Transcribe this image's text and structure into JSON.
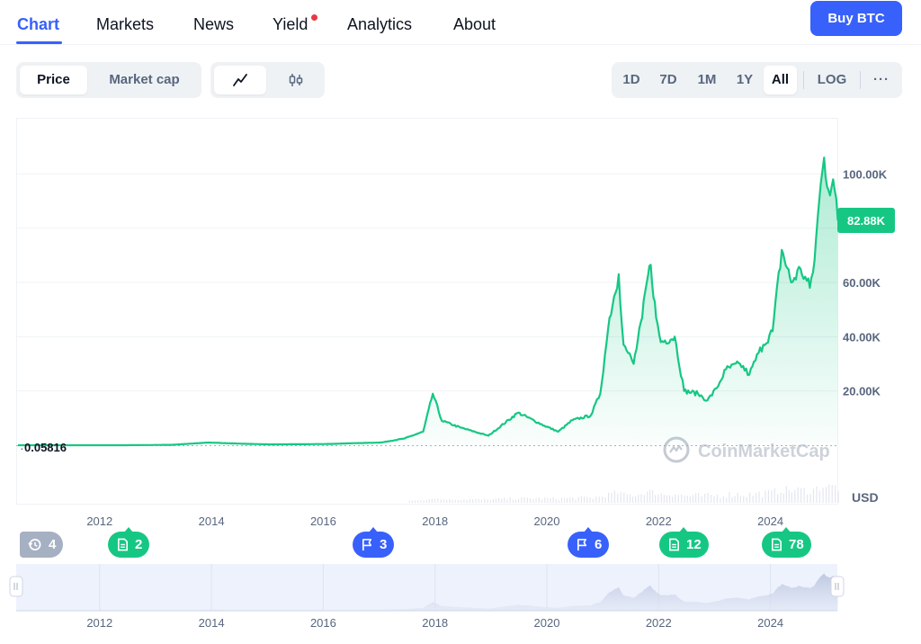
{
  "nav": {
    "tabs": [
      {
        "label": "Chart",
        "active": true
      },
      {
        "label": "Markets"
      },
      {
        "label": "News"
      },
      {
        "label": "Yield",
        "dot": true
      },
      {
        "label": "Analytics"
      },
      {
        "label": "About"
      }
    ],
    "buy_label": "Buy BTC"
  },
  "toolbar": {
    "metric": [
      "Price",
      "Market cap"
    ],
    "metric_selected": "Price",
    "chart_type_icons": [
      "line-chart-icon",
      "candlestick-icon"
    ],
    "ranges": [
      "1D",
      "7D",
      "1M",
      "1Y",
      "All"
    ],
    "range_selected": "All",
    "log_label": "LOG",
    "more_label": "···"
  },
  "colors": {
    "accent": "#3861fb",
    "line": "#16c784",
    "badge_green": "#16c784",
    "badge_blue": "#3861fb",
    "badge_gray": "#a6b0c3"
  },
  "chart_data": {
    "type": "area",
    "currency": "USD",
    "ylim": [
      0,
      120000
    ],
    "y_ticks": [
      20000,
      40000,
      60000,
      80000,
      100000
    ],
    "y_tick_labels": [
      "20.00K",
      "40.00K",
      "60.00K",
      "",
      "100.00K"
    ],
    "x_ticks": [
      "2012",
      "2014",
      "2016",
      "2018",
      "2020",
      "2022",
      "2024"
    ],
    "start_label": "0.05816",
    "current_label": "82.88K",
    "current_value": 82880,
    "watermark": "CoinMarketCap",
    "grid": true,
    "series": [
      {
        "x": [
          "2010-07",
          "2011-06",
          "2012-06",
          "2013-04",
          "2013-12",
          "2014-06",
          "2015-01",
          "2016-01",
          "2016-06",
          "2017-01",
          "2017-06",
          "2017-10",
          "2017-12-17",
          "2018-02",
          "2018-06",
          "2018-12",
          "2019-06-26",
          "2019-12",
          "2020-03",
          "2020-06",
          "2020-10",
          "2020-12",
          "2021-01",
          "2021-02",
          "2021-04-14",
          "2021-05",
          "2021-06",
          "2021-07-20",
          "2021-09",
          "2021-10",
          "2021-11-10",
          "2021-12",
          "2022-01",
          "2022-04",
          "2022-06",
          "2022-09",
          "2022-11",
          "2023-01",
          "2023-03",
          "2023-06",
          "2023-08",
          "2023-10",
          "2023-11",
          "2024-01",
          "2024-03-14",
          "2024-05",
          "2024-07",
          "2024-09",
          "2024-10",
          "2024-11",
          "2024-12-17",
          "2025-01",
          "2025-02",
          "2025-03"
        ],
        "y": [
          0.06,
          15,
          6,
          140,
          1000,
          600,
          300,
          430,
          700,
          1000,
          2500,
          5000,
          19000,
          9000,
          6500,
          3500,
          12000,
          7200,
          5000,
          9200,
          11000,
          19000,
          33000,
          47000,
          63000,
          37000,
          34000,
          30000,
          47000,
          60000,
          66500,
          47000,
          38000,
          40000,
          20000,
          19000,
          16500,
          21000,
          28000,
          30000,
          26000,
          34000,
          37000,
          42000,
          72000,
          60000,
          65000,
          58000,
          68000,
          90000,
          106000,
          94000,
          98000,
          82880
        ]
      }
    ],
    "events": [
      {
        "icon": "history-icon",
        "count": "4",
        "color": "gray"
      },
      {
        "icon": "document-icon",
        "count": "2",
        "color": "green"
      },
      {
        "icon": "flag-icon",
        "count": "3",
        "color": "blue"
      },
      {
        "icon": "flag-icon",
        "count": "6",
        "color": "blue"
      },
      {
        "icon": "document-icon",
        "count": "12",
        "color": "green"
      },
      {
        "icon": "document-icon",
        "count": "78",
        "color": "green"
      }
    ]
  }
}
